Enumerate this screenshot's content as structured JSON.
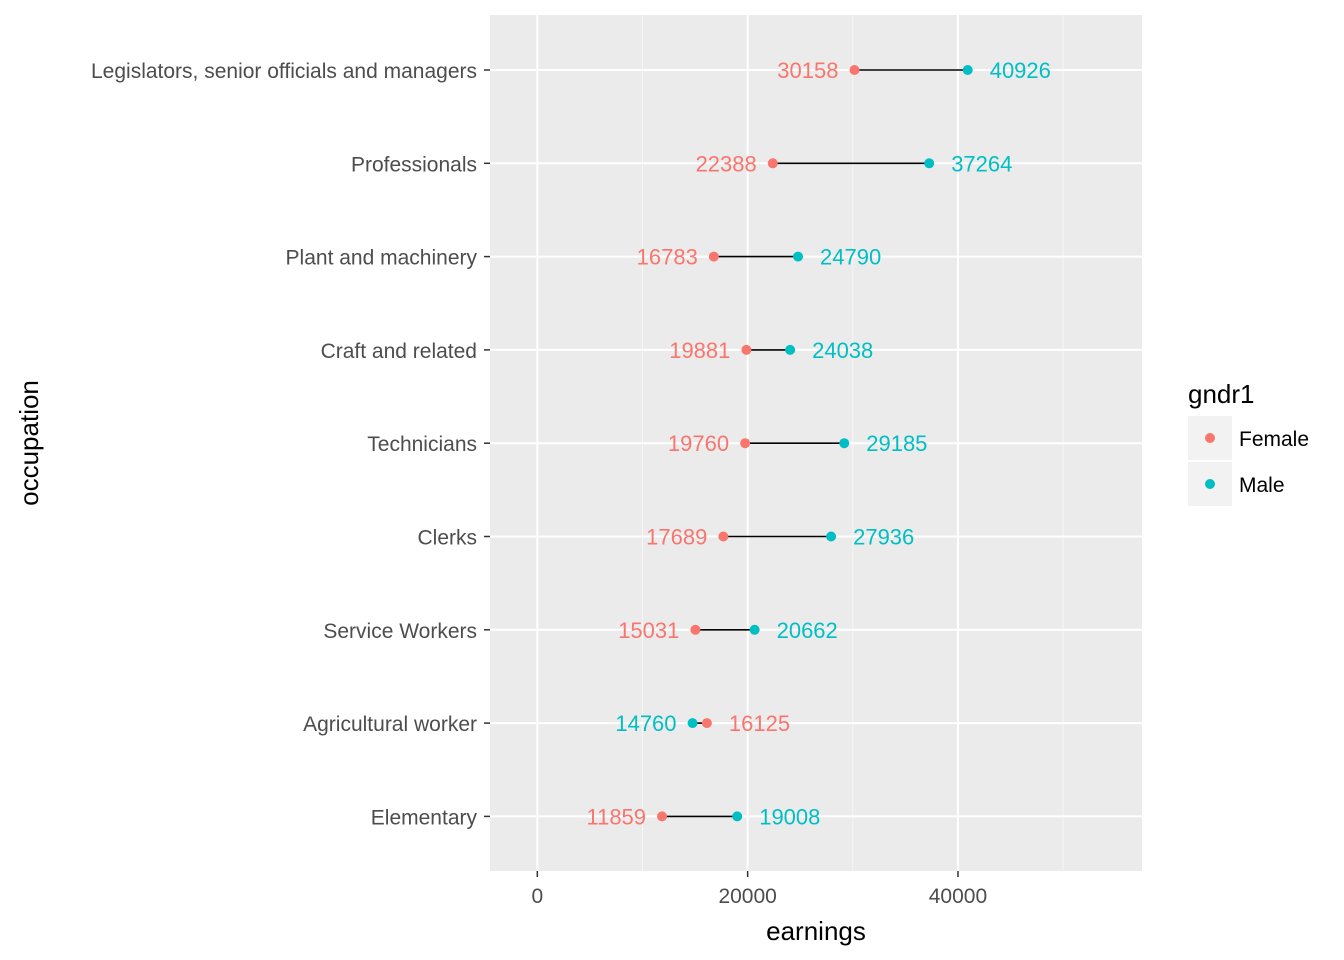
{
  "chart_data": {
    "type": "dumbbell",
    "xlabel": "earnings",
    "ylabel": "occupation",
    "xlim": [
      -4500,
      57500
    ],
    "x_ticks": [
      0,
      20000,
      40000
    ],
    "x_tick_labels": [
      "0",
      "20000",
      "40000"
    ],
    "grid": true,
    "legend": {
      "title": "gndr1",
      "position": "right",
      "entries": [
        {
          "label": "Female",
          "color": "#F8766D"
        },
        {
          "label": "Male",
          "color": "#00BFC4"
        }
      ]
    },
    "categories": [
      "Legislators, senior officials and managers",
      "Professionals",
      "Plant and machinery",
      "Craft and related",
      "Technicians",
      "Clerks",
      "Service Workers",
      "Agricultural worker",
      "Elementary"
    ],
    "series": [
      {
        "name": "Female",
        "color": "#F8766D",
        "values": [
          30158,
          22388,
          16783,
          19881,
          19760,
          17689,
          15031,
          16125,
          11859
        ]
      },
      {
        "name": "Male",
        "color": "#00BFC4",
        "values": [
          40926,
          37264,
          24790,
          24038,
          29185,
          27936,
          20662,
          14760,
          19008
        ]
      }
    ]
  },
  "colors": {
    "panel_background": "#EBEBEB",
    "grid_major": "#FFFFFF",
    "segment": "#000000"
  }
}
